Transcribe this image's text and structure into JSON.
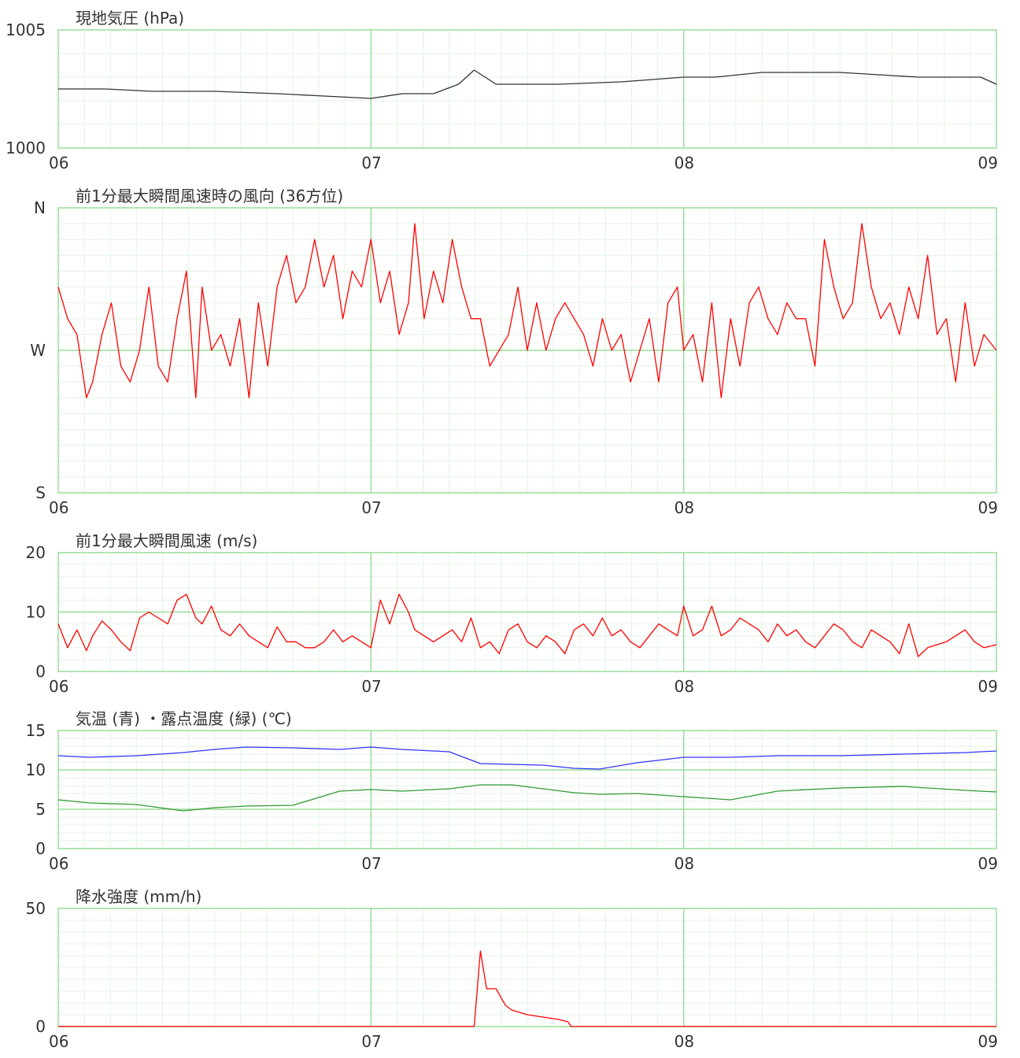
{
  "x_axis": {
    "tick_labels": [
      "06",
      "07",
      "08",
      "09"
    ],
    "range": [
      6,
      9
    ]
  },
  "colors": {
    "grid_major": "#99dd99",
    "grid_minor": "#e3f3e3",
    "frame": "#99dd99",
    "text": "#333333"
  },
  "chart_data": [
    {
      "id": "pressure",
      "type": "line",
      "title": "現地気圧 (hPa)",
      "ylim": [
        1000,
        1005
      ],
      "y_tick_labels": [
        {
          "v": 1005,
          "t": "1005"
        },
        {
          "v": 1000,
          "t": "1000"
        }
      ],
      "minor_y": 1,
      "x": [
        6.0,
        6.15,
        6.3,
        6.5,
        6.7,
        6.85,
        7.0,
        7.1,
        7.2,
        7.28,
        7.33,
        7.4,
        7.5,
        7.6,
        7.8,
        8.0,
        8.1,
        8.25,
        8.5,
        8.75,
        8.95,
        9.0
      ],
      "series": [
        {
          "color": "#333333",
          "values": [
            1002.5,
            1002.5,
            1002.4,
            1002.4,
            1002.3,
            1002.2,
            1002.1,
            1002.3,
            1002.3,
            1002.7,
            1003.3,
            1002.7,
            1002.7,
            1002.7,
            1002.8,
            1003.0,
            1003.0,
            1003.2,
            1003.2,
            1003.0,
            1003.0,
            1002.7
          ]
        }
      ]
    },
    {
      "id": "wind-direction",
      "type": "line",
      "title": "前1分最大瞬間風速時の風向 (36方位)",
      "ylim": [
        180,
        360
      ],
      "y_tick_labels": [
        {
          "v": 360,
          "t": "N"
        },
        {
          "v": 270,
          "t": "W"
        },
        {
          "v": 180,
          "t": "S"
        }
      ],
      "minor_y": 10,
      "x": [
        6.0,
        6.03,
        6.06,
        6.09,
        6.11,
        6.14,
        6.17,
        6.2,
        6.23,
        6.26,
        6.29,
        6.32,
        6.35,
        6.38,
        6.41,
        6.44,
        6.46,
        6.49,
        6.52,
        6.55,
        6.58,
        6.61,
        6.64,
        6.67,
        6.7,
        6.73,
        6.76,
        6.79,
        6.82,
        6.85,
        6.88,
        6.91,
        6.94,
        6.97,
        7.0,
        7.03,
        7.06,
        7.09,
        7.12,
        7.14,
        7.17,
        7.2,
        7.23,
        7.26,
        7.29,
        7.32,
        7.35,
        7.38,
        7.41,
        7.44,
        7.47,
        7.5,
        7.53,
        7.56,
        7.59,
        7.62,
        7.65,
        7.68,
        7.71,
        7.74,
        7.77,
        7.8,
        7.83,
        7.86,
        7.89,
        7.92,
        7.95,
        7.98,
        8.0,
        8.03,
        8.06,
        8.09,
        8.12,
        8.15,
        8.18,
        8.21,
        8.24,
        8.27,
        8.3,
        8.33,
        8.36,
        8.39,
        8.42,
        8.45,
        8.48,
        8.51,
        8.54,
        8.57,
        8.6,
        8.63,
        8.66,
        8.69,
        8.72,
        8.75,
        8.78,
        8.81,
        8.84,
        8.87,
        8.9,
        8.93,
        8.96,
        9.0
      ],
      "series": [
        {
          "color": "#ff0000",
          "values": [
            310,
            290,
            280,
            240,
            250,
            280,
            300,
            260,
            250,
            270,
            310,
            260,
            250,
            290,
            320,
            240,
            310,
            270,
            280,
            260,
            290,
            240,
            300,
            260,
            310,
            330,
            300,
            310,
            340,
            310,
            330,
            290,
            320,
            310,
            340,
            300,
            320,
            280,
            300,
            350,
            290,
            320,
            300,
            340,
            310,
            290,
            290,
            260,
            270,
            280,
            310,
            270,
            300,
            270,
            290,
            300,
            290,
            280,
            260,
            290,
            270,
            280,
            250,
            270,
            290,
            250,
            300,
            310,
            270,
            280,
            250,
            300,
            240,
            290,
            260,
            300,
            310,
            290,
            280,
            300,
            290,
            290,
            260,
            340,
            310,
            290,
            300,
            350,
            310,
            290,
            300,
            280,
            310,
            290,
            330,
            280,
            290,
            250,
            300,
            260,
            280,
            270
          ]
        }
      ]
    },
    {
      "id": "wind-speed",
      "type": "line",
      "title": "前1分最大瞬間風速 (m/s)",
      "ylim": [
        0,
        20
      ],
      "y_tick_labels": [
        {
          "v": 20,
          "t": "20"
        },
        {
          "v": 10,
          "t": "10"
        },
        {
          "v": 0,
          "t": "0"
        }
      ],
      "minor_y": 2,
      "x": [
        6.0,
        6.03,
        6.06,
        6.09,
        6.11,
        6.14,
        6.17,
        6.2,
        6.23,
        6.26,
        6.29,
        6.32,
        6.35,
        6.38,
        6.41,
        6.44,
        6.46,
        6.49,
        6.52,
        6.55,
        6.58,
        6.61,
        6.64,
        6.67,
        6.7,
        6.73,
        6.76,
        6.79,
        6.82,
        6.85,
        6.88,
        6.91,
        6.94,
        6.97,
        7.0,
        7.03,
        7.06,
        7.09,
        7.12,
        7.14,
        7.17,
        7.2,
        7.23,
        7.26,
        7.29,
        7.32,
        7.35,
        7.38,
        7.41,
        7.44,
        7.47,
        7.5,
        7.53,
        7.56,
        7.59,
        7.62,
        7.65,
        7.68,
        7.71,
        7.74,
        7.77,
        7.8,
        7.83,
        7.86,
        7.89,
        7.92,
        7.95,
        7.98,
        8.0,
        8.03,
        8.06,
        8.09,
        8.12,
        8.15,
        8.18,
        8.21,
        8.24,
        8.27,
        8.3,
        8.33,
        8.36,
        8.39,
        8.42,
        8.45,
        8.48,
        8.51,
        8.54,
        8.57,
        8.6,
        8.63,
        8.66,
        8.69,
        8.72,
        8.75,
        8.78,
        8.81,
        8.84,
        8.87,
        8.9,
        8.93,
        8.96,
        9.0
      ],
      "series": [
        {
          "color": "#ff0000",
          "values": [
            8,
            4,
            7,
            3.5,
            6,
            8.5,
            7,
            5,
            3.5,
            9,
            10,
            9,
            8,
            12,
            13,
            9,
            8,
            11,
            7,
            6,
            8,
            6,
            5,
            4,
            7.5,
            5,
            5,
            4,
            4,
            5,
            7,
            5,
            6,
            5,
            4,
            12,
            8,
            13,
            10,
            7,
            6,
            5,
            6,
            7,
            5,
            9,
            4,
            5,
            3,
            7,
            8,
            5,
            4,
            6,
            5,
            3,
            7,
            8,
            6,
            9,
            6,
            7,
            5,
            4,
            6,
            8,
            7,
            6,
            11,
            6,
            7,
            11,
            6,
            7,
            9,
            8,
            7,
            5,
            8,
            6,
            7,
            5,
            4,
            6,
            8,
            7,
            5,
            4,
            7,
            6,
            5,
            3,
            8,
            2.5,
            4,
            4.5,
            5,
            6,
            7,
            5,
            4,
            4.5
          ]
        }
      ]
    },
    {
      "id": "temperature",
      "type": "line",
      "title": "気温 (青) ・露点温度 (緑) (℃)",
      "ylim": [
        0,
        15
      ],
      "y_tick_labels": [
        {
          "v": 15,
          "t": "15"
        },
        {
          "v": 10,
          "t": "10"
        },
        {
          "v": 5,
          "t": "5"
        },
        {
          "v": 0,
          "t": "0"
        }
      ],
      "minor_y": 1,
      "x": [
        6.0,
        6.1,
        6.25,
        6.4,
        6.5,
        6.6,
        6.75,
        6.9,
        7.0,
        7.1,
        7.25,
        7.35,
        7.45,
        7.55,
        7.65,
        7.73,
        7.85,
        8.0,
        8.15,
        8.3,
        8.5,
        8.7,
        8.9,
        9.0
      ],
      "series": [
        {
          "color": "#3333ff",
          "values": [
            11.8,
            11.6,
            11.8,
            12.2,
            12.6,
            12.9,
            12.8,
            12.6,
            12.9,
            12.6,
            12.3,
            10.8,
            10.7,
            10.6,
            10.2,
            10.1,
            10.9,
            11.6,
            11.6,
            11.8,
            11.8,
            12.0,
            12.2,
            12.4
          ]
        },
        {
          "color": "#339933",
          "values": [
            6.2,
            5.8,
            5.6,
            4.8,
            5.2,
            5.4,
            5.5,
            7.3,
            7.5,
            7.3,
            7.6,
            8.1,
            8.1,
            7.6,
            7.1,
            6.9,
            7.0,
            6.6,
            6.2,
            7.3,
            7.7,
            7.9,
            7.4,
            7.2
          ]
        }
      ]
    },
    {
      "id": "precipitation",
      "type": "line",
      "title": "降水強度 (mm/h)",
      "ylim": [
        0,
        50
      ],
      "y_tick_labels": [
        {
          "v": 50,
          "t": "50"
        },
        {
          "v": 0,
          "t": "0"
        }
      ],
      "minor_y": 5,
      "x": [
        6.0,
        7.33,
        7.35,
        7.37,
        7.4,
        7.43,
        7.45,
        7.5,
        7.55,
        7.6,
        7.63,
        7.64,
        9.0
      ],
      "series": [
        {
          "color": "#ff0000",
          "values": [
            0,
            0,
            32,
            16,
            16,
            9,
            7,
            5,
            4,
            3,
            2,
            0,
            0
          ]
        }
      ]
    }
  ]
}
